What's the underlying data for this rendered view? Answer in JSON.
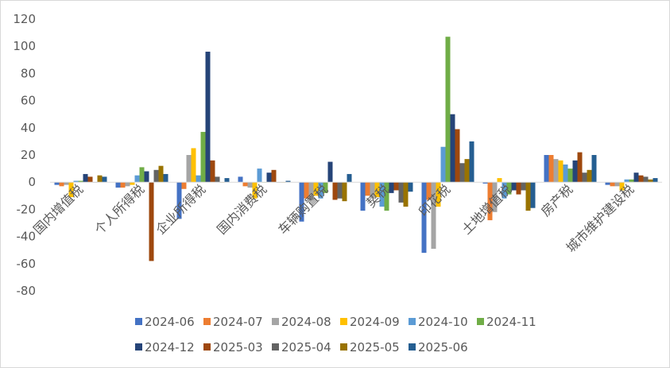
{
  "chart_data": {
    "type": "bar",
    "title": "",
    "xlabel": "",
    "ylabel": "",
    "ylim": [
      -80,
      120
    ],
    "yticks": [
      -80,
      -60,
      -40,
      -20,
      0,
      20,
      40,
      60,
      80,
      100,
      120
    ],
    "grid": false,
    "legend_position": "bottom",
    "categories": [
      "国内增值税",
      "个人所得税",
      "企业所得税",
      "国内消费税",
      "车辆购置税",
      "契税",
      "印花税",
      "土地增值税",
      "房产税",
      "城市维护建设税"
    ],
    "series": [
      {
        "name": "2024-06",
        "color": "#4472C4",
        "values": [
          -2,
          -4,
          -27,
          4,
          -29,
          -21,
          -52,
          -1,
          20,
          -2
        ]
      },
      {
        "name": "2024-07",
        "color": "#ED7D31",
        "values": [
          -3,
          -4,
          -5,
          -3,
          -12,
          -10,
          -13,
          -28,
          20,
          -3
        ]
      },
      {
        "name": "2024-08",
        "color": "#A5A5A5",
        "values": [
          -2,
          -3,
          20,
          -4,
          -13,
          -12,
          -49,
          -22,
          17,
          -3
        ]
      },
      {
        "name": "2024-09",
        "color": "#FFC000",
        "values": [
          -11,
          -2,
          25,
          -12,
          -10,
          -11,
          -18,
          3,
          16,
          -6
        ]
      },
      {
        "name": "2024-10",
        "color": "#5B9BD5",
        "values": [
          1,
          5,
          5,
          10,
          -12,
          -18,
          26,
          -12,
          13,
          2
        ]
      },
      {
        "name": "2024-11",
        "color": "#70AD47",
        "values": [
          1,
          11,
          37,
          0,
          -8,
          -21,
          107,
          -9,
          10,
          2
        ]
      },
      {
        "name": "2024-12",
        "color": "#264478",
        "values": [
          6,
          8,
          96,
          7,
          15,
          -8,
          50,
          -6,
          16,
          7
        ]
      },
      {
        "name": "2025-03",
        "color": "#9E480E",
        "values": [
          4,
          -58,
          16,
          9,
          -13,
          -6,
          39,
          -9,
          22,
          5
        ]
      },
      {
        "name": "2025-04",
        "color": "#636363",
        "values": [
          0,
          9,
          4,
          0,
          -12,
          -15,
          14,
          -6,
          7,
          4
        ]
      },
      {
        "name": "2025-05",
        "color": "#997300",
        "values": [
          5,
          12,
          0,
          0,
          -14,
          -18,
          17,
          -21,
          9,
          2
        ]
      },
      {
        "name": "2025-06",
        "color": "#255E91",
        "values": [
          4,
          6,
          3,
          1,
          6,
          -7,
          30,
          -19,
          20,
          3
        ]
      }
    ]
  }
}
